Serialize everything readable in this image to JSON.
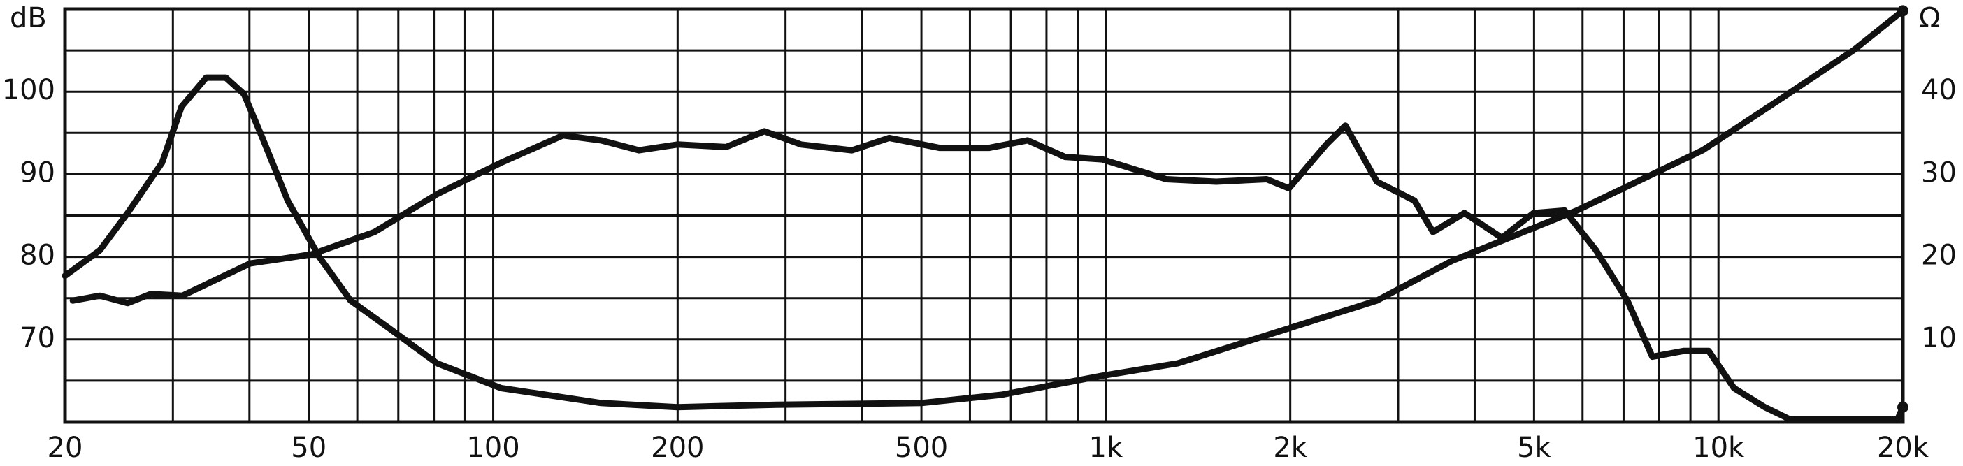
{
  "chart_data": {
    "type": "line",
    "y_label": "dB",
    "y2_label": "Ω",
    "xscale": "log",
    "xlim": [
      20,
      20000
    ],
    "xticks": [
      20,
      50,
      100,
      200,
      500,
      {
        "value": 1000,
        "label": "1k"
      },
      {
        "value": 2000,
        "label": "2k"
      },
      {
        "value": 5000,
        "label": "5k"
      },
      {
        "value": 10000,
        "label": "10k"
      },
      {
        "value": 20000,
        "label": "20k"
      }
    ],
    "xgrid": [
      30,
      40,
      50,
      60,
      70,
      80,
      90,
      100,
      200,
      300,
      400,
      500,
      600,
      700,
      800,
      900,
      1000,
      2000,
      3000,
      4000,
      5000,
      6000,
      7000,
      8000,
      9000,
      10000
    ],
    "ylim": [
      60,
      110
    ],
    "yticks": [
      70,
      80,
      90,
      100
    ],
    "ygrid": [
      65,
      70,
      75,
      80,
      85,
      90,
      95,
      100,
      105
    ],
    "y2lim": [
      0,
      50
    ],
    "y2ticks": [
      10,
      20,
      30,
      40
    ],
    "series": [
      {
        "color": "#111111",
        "x": [
          20.6,
          22.8,
          25.3,
          27.6,
          31.1,
          40.1,
          50.5,
          64,
          81,
          103,
          130,
          150,
          173,
          200,
          240,
          277,
          318,
          385,
          443,
          535,
          645,
          745,
          858,
          986,
          1255,
          1514,
          1830,
          1990,
          2290,
          2460,
          2770,
          3190,
          3420,
          3850,
          4430,
          4990,
          5610,
          6310,
          7100,
          7800,
          8770,
          9640,
          10600,
          11900,
          13100,
          19600,
          20000
        ],
        "values": [
          74.7,
          75.3,
          74.4,
          75.5,
          75.3,
          79.2,
          80.3,
          83,
          87.6,
          91.4,
          94.7,
          94.1,
          92.9,
          93.6,
          93.3,
          95.2,
          93.6,
          92.9,
          94.4,
          93.2,
          93.2,
          94.1,
          92.1,
          91.8,
          89.4,
          89.1,
          89.4,
          88.3,
          93.6,
          95.9,
          89.1,
          86.8,
          83,
          85.3,
          82.3,
          85.3,
          85.6,
          80.8,
          74.7,
          67.9,
          68.6,
          68.6,
          64.1,
          61.8,
          60.3,
          60.3,
          61.8
        ]
      },
      {
        "color": "#111111",
        "axis": "y2",
        "x": [
          20,
          22.8,
          25.3,
          28.8,
          31,
          34,
          36.6,
          39.2,
          42,
          46.2,
          52,
          58.5,
          67.5,
          81,
          103,
          150,
          200,
          290,
          500,
          676,
          986,
          1310,
          2000,
          2770,
          3670,
          5870,
          9420,
          12500,
          16600,
          20000
        ],
        "values": [
          17.7,
          20.8,
          25.3,
          31.4,
          38.2,
          41.7,
          41.7,
          39.7,
          34.4,
          26.8,
          20,
          14.7,
          11.4,
          7.1,
          4.1,
          2.3,
          1.8,
          2.1,
          2.3,
          3.3,
          5.6,
          7.1,
          11.4,
          14.7,
          19.5,
          25.6,
          32.9,
          38.9,
          45,
          49.8
        ]
      }
    ]
  }
}
